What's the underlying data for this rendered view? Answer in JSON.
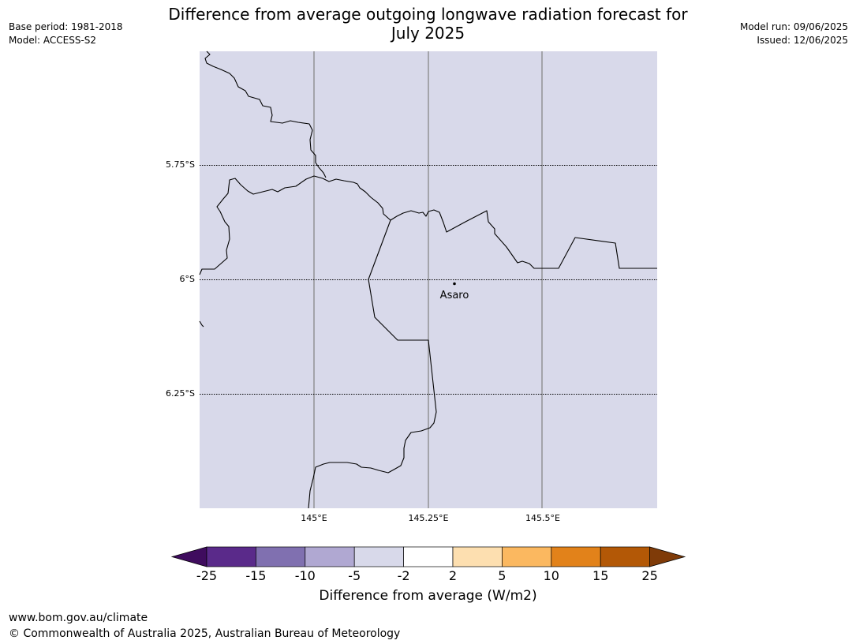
{
  "header": {
    "base_period": "Base period: 1981-2018",
    "model": "Model: ACCESS-S2",
    "title_line1": "Difference from average outgoing longwave radiation forecast for",
    "title_line2": "July 2025",
    "model_run": "Model run: 09/06/2025",
    "issued": "Issued: 12/06/2025"
  },
  "map": {
    "fill_color": "#d8d9ea",
    "lat_labels": [
      "5.75°S",
      "6°S",
      "6.25°S"
    ],
    "lon_labels": [
      "145°E",
      "145.25°E",
      "145.5°E"
    ],
    "location": {
      "name": "Asaro",
      "lon": 145.3,
      "lat": -6.01
    }
  },
  "colorbar": {
    "ticks": [
      "-25",
      "-15",
      "-10",
      "-5",
      "-2",
      "2",
      "5",
      "10",
      "15",
      "25"
    ],
    "colors": [
      "#3f0c5e",
      "#5a2a8a",
      "#8070b0",
      "#b0a8d2",
      "#d8d9ea",
      "#ffffff",
      "#fddfb0",
      "#fbb860",
      "#e2821a",
      "#b35806",
      "#7f3b08"
    ],
    "label": "Difference from average (W/m2)"
  },
  "footer": {
    "url": "www.bom.gov.au/climate",
    "copyright": "© Commonwealth of Australia 2025, Australian Bureau of Meteorology"
  }
}
